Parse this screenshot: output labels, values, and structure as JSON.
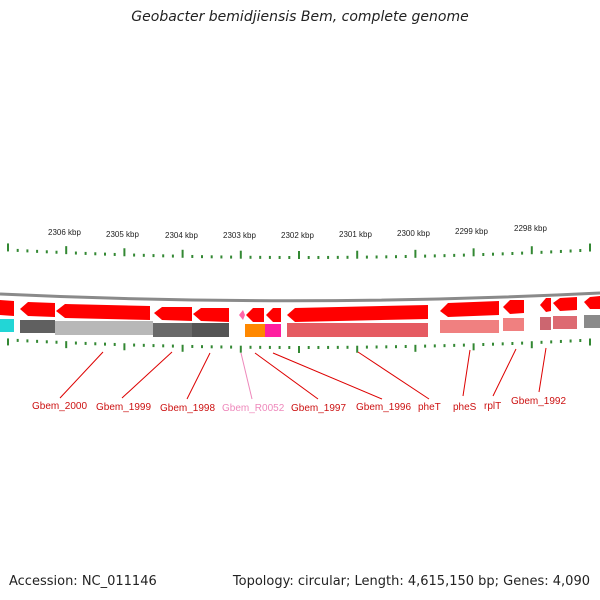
{
  "title": "Geobacter bemidjiensis Bem, complete genome",
  "footer": {
    "accession": "Accession: NC_011146",
    "summary": "Topology: circular; Length: 4,615,150 bp; Genes: 4,090"
  },
  "ruler": {
    "unit": "kbp",
    "ticks": [
      "2306 kbp",
      "2305 kbp",
      "2304 kbp",
      "2303 kbp",
      "2302 kbp",
      "2301 kbp",
      "2300 kbp",
      "2299 kbp",
      "2298 kbp"
    ]
  },
  "genes": [
    {
      "label": "Gbem_2000",
      "color": "#cc1111"
    },
    {
      "label": "Gbem_1999",
      "color": "#cc1111"
    },
    {
      "label": "Gbem_1998",
      "color": "#cc1111"
    },
    {
      "label": "Gbem_R0052",
      "color": "#ee88bb"
    },
    {
      "label": "Gbem_1997",
      "color": "#cc1111"
    },
    {
      "label": "Gbem_1996",
      "color": "#cc1111"
    },
    {
      "label": "pheT",
      "color": "#cc1111"
    },
    {
      "label": "pheS",
      "color": "#cc1111"
    },
    {
      "label": "rplT",
      "color": "#cc1111"
    },
    {
      "label": "Gbem_1992",
      "color": "#cc1111"
    }
  ],
  "colors": {
    "cds": "#ff0000",
    "rna": "#ff66aa",
    "tick": "#338833",
    "backbone": "#8a8a8a"
  }
}
